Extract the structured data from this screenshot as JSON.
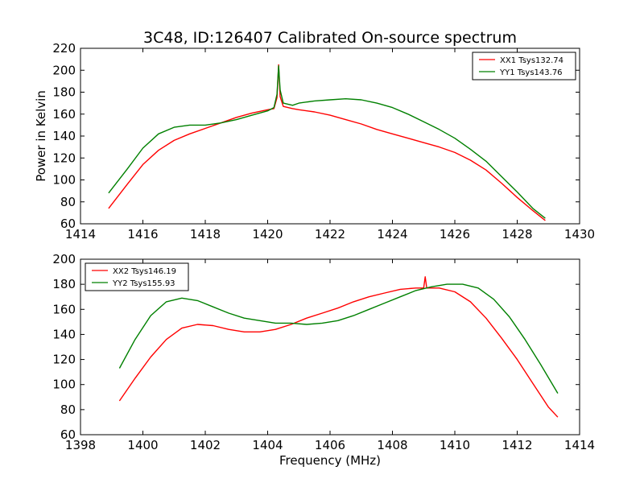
{
  "title": "3C48, ID:126407 Calibrated On-source spectrum",
  "colors": {
    "red": "#ff0000",
    "green": "#008000"
  },
  "chart_data": [
    {
      "type": "line",
      "ylabel": "Power in Kelvin",
      "xlabel": "",
      "xlim": [
        1414,
        1430
      ],
      "ylim": [
        60,
        220
      ],
      "xticks": [
        1414,
        1416,
        1418,
        1420,
        1422,
        1424,
        1426,
        1428,
        1430
      ],
      "yticks": [
        60,
        80,
        100,
        120,
        140,
        160,
        180,
        200,
        220
      ],
      "legend": "top-right",
      "series": [
        {
          "name": "XX1 Tsys132.74",
          "color": "#ff0000",
          "x": [
            1414.9,
            1415.5,
            1416.0,
            1416.5,
            1417.0,
            1417.5,
            1418.0,
            1418.5,
            1419.0,
            1419.5,
            1420.0,
            1420.2,
            1420.3,
            1420.35,
            1420.4,
            1420.5,
            1420.8,
            1421.0,
            1421.5,
            1422.0,
            1422.5,
            1423.0,
            1423.5,
            1424.0,
            1424.5,
            1425.0,
            1425.5,
            1426.0,
            1426.5,
            1427.0,
            1427.5,
            1428.0,
            1428.5,
            1428.9
          ],
          "y": [
            74,
            96,
            114,
            127,
            136,
            142,
            147,
            152,
            157,
            161,
            164,
            165,
            175,
            205,
            176,
            167,
            165,
            164,
            162,
            159,
            155,
            151,
            146,
            142,
            138,
            134,
            130,
            125,
            118,
            109,
            97,
            84,
            72,
            63
          ]
        },
        {
          "name": "YY1 Tsys143.76",
          "color": "#008000",
          "x": [
            1414.9,
            1415.5,
            1416.0,
            1416.5,
            1417.0,
            1417.5,
            1418.0,
            1418.5,
            1419.0,
            1419.5,
            1420.0,
            1420.2,
            1420.3,
            1420.35,
            1420.4,
            1420.5,
            1420.8,
            1421.0,
            1421.5,
            1422.0,
            1422.5,
            1423.0,
            1423.5,
            1424.0,
            1424.5,
            1425.0,
            1425.5,
            1426.0,
            1426.5,
            1427.0,
            1427.5,
            1428.0,
            1428.5,
            1428.9
          ],
          "y": [
            88,
            110,
            129,
            142,
            148,
            150,
            150,
            152,
            155,
            159,
            163,
            166,
            178,
            204,
            182,
            170,
            168,
            170,
            172,
            173,
            174,
            173,
            170,
            166,
            160,
            153,
            146,
            138,
            128,
            117,
            103,
            89,
            74,
            65
          ]
        }
      ]
    },
    {
      "type": "line",
      "ylabel": "",
      "xlabel": "Frequency (MHz)",
      "xlim": [
        1398,
        1414
      ],
      "ylim": [
        60,
        200
      ],
      "xticks": [
        1398,
        1400,
        1402,
        1404,
        1406,
        1408,
        1410,
        1412,
        1414
      ],
      "yticks": [
        60,
        80,
        100,
        120,
        140,
        160,
        180,
        200
      ],
      "legend": "top-left",
      "series": [
        {
          "name": "XX2 Tsys146.19",
          "color": "#ff0000",
          "x": [
            1399.25,
            1399.75,
            1400.25,
            1400.75,
            1401.25,
            1401.75,
            1402.25,
            1402.75,
            1403.25,
            1403.75,
            1404.25,
            1404.75,
            1405.25,
            1405.75,
            1406.25,
            1406.75,
            1407.25,
            1407.75,
            1408.25,
            1408.75,
            1409.0,
            1409.05,
            1409.1,
            1409.5,
            1410.0,
            1410.5,
            1411.0,
            1411.5,
            1412.0,
            1412.5,
            1413.0,
            1413.3
          ],
          "y": [
            87,
            105,
            122,
            136,
            145,
            148,
            147,
            144,
            142,
            142,
            144,
            148,
            153,
            157,
            161,
            166,
            170,
            173,
            176,
            177,
            177,
            186,
            177,
            177,
            174,
            166,
            153,
            137,
            120,
            101,
            82,
            74
          ]
        },
        {
          "name": "YY2 Tsys155.93",
          "color": "#008000",
          "x": [
            1399.25,
            1399.75,
            1400.25,
            1400.75,
            1401.25,
            1401.75,
            1402.25,
            1402.75,
            1403.25,
            1403.75,
            1404.25,
            1404.75,
            1405.25,
            1405.75,
            1406.25,
            1406.75,
            1407.25,
            1407.75,
            1408.25,
            1408.75,
            1409.25,
            1409.75,
            1410.25,
            1410.75,
            1411.25,
            1411.75,
            1412.25,
            1412.75,
            1413.3
          ],
          "y": [
            113,
            136,
            155,
            166,
            169,
            167,
            162,
            157,
            153,
            151,
            149,
            149,
            148,
            149,
            151,
            155,
            160,
            165,
            170,
            175,
            178,
            180,
            180,
            177,
            168,
            154,
            136,
            116,
            93
          ]
        }
      ]
    }
  ]
}
